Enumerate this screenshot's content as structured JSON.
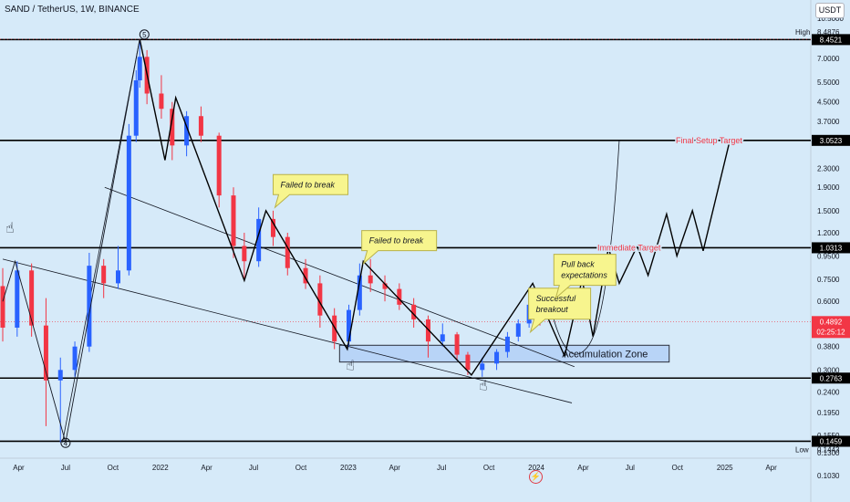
{
  "header": {
    "title": "SAND / TetherUS, 1W, BINANCE",
    "currency_button": "USDT"
  },
  "colors": {
    "background": "#d6eaf9",
    "up": "#2962ff",
    "down": "#f23645",
    "zone_fill": "#b8d4f7",
    "callout": "#f7f58e",
    "callout_border": "#b9b24a",
    "target_text": "#f23645"
  },
  "chart_data": {
    "type": "candlestick",
    "symbol": "SAND / TetherUS",
    "interval": "1W",
    "exchange": "BINANCE",
    "scale": "log",
    "ylim": [
      0.095,
      11.5
    ],
    "xlim": [
      "2021-03-01",
      "2025-06-01"
    ],
    "x_ticks": [
      {
        "label": "Apr",
        "date": "2021-04-01"
      },
      {
        "label": "Jul",
        "date": "2021-07-01"
      },
      {
        "label": "Oct",
        "date": "2021-10-01"
      },
      {
        "label": "2022",
        "date": "2022-01-01"
      },
      {
        "label": "Apr",
        "date": "2022-04-01"
      },
      {
        "label": "Jul",
        "date": "2022-07-01"
      },
      {
        "label": "Oct",
        "date": "2022-10-01"
      },
      {
        "label": "2023",
        "date": "2023-01-01"
      },
      {
        "label": "Apr",
        "date": "2023-04-01"
      },
      {
        "label": "Jul",
        "date": "2023-07-01"
      },
      {
        "label": "Oct",
        "date": "2023-10-01"
      },
      {
        "label": "2024",
        "date": "2024-01-01"
      },
      {
        "label": "Apr",
        "date": "2024-04-01"
      },
      {
        "label": "Jul",
        "date": "2024-07-01"
      },
      {
        "label": "Oct",
        "date": "2024-10-01"
      },
      {
        "label": "2025",
        "date": "2025-01-01"
      },
      {
        "label": "Apr",
        "date": "2025-04-01"
      }
    ],
    "y_ticks": [
      "10.5000",
      "7.0000",
      "5.5000",
      "4.5000",
      "3.7000",
      "2.3000",
      "1.9000",
      "1.5000",
      "1.2000",
      "0.9500",
      "0.7500",
      "0.6000",
      "0.3800",
      "0.3000",
      "0.2400",
      "0.1950",
      "0.1550",
      "0.1300",
      "0.1030"
    ],
    "price_labels": [
      {
        "text": "High",
        "value": "8.4876",
        "price": 8.4876,
        "kind": "high"
      },
      {
        "text": "",
        "value": "8.4521",
        "price": 8.4521,
        "kind": "box"
      },
      {
        "text": "",
        "value": "3.0523",
        "price": 3.0523,
        "kind": "box"
      },
      {
        "text": "",
        "value": "1.0313",
        "price": 1.0313,
        "kind": "box"
      },
      {
        "text": "",
        "value": "0.4892",
        "price": 0.4892,
        "kind": "current",
        "countdown": "02:25:12"
      },
      {
        "text": "",
        "value": "0.2763",
        "price": 0.2763,
        "kind": "box"
      },
      {
        "text": "",
        "value": "0.1459",
        "price": 0.1459,
        "kind": "box"
      },
      {
        "text": "Low",
        "value": "0.1443",
        "price": 0.1443,
        "kind": "low"
      }
    ],
    "candles": [
      {
        "d": "2021-03-01",
        "o": 0.7,
        "h": 0.84,
        "l": 0.4,
        "c": 0.46
      },
      {
        "d": "2021-03-29",
        "o": 0.46,
        "h": 0.9,
        "l": 0.42,
        "c": 0.82
      },
      {
        "d": "2021-04-26",
        "o": 0.82,
        "h": 0.88,
        "l": 0.42,
        "c": 0.47
      },
      {
        "d": "2021-05-24",
        "o": 0.47,
        "h": 0.62,
        "l": 0.17,
        "c": 0.27
      },
      {
        "d": "2021-06-21",
        "o": 0.27,
        "h": 0.34,
        "l": 0.1443,
        "c": 0.3
      },
      {
        "d": "2021-07-19",
        "o": 0.3,
        "h": 0.4,
        "l": 0.28,
        "c": 0.38
      },
      {
        "d": "2021-08-16",
        "o": 0.38,
        "h": 0.98,
        "l": 0.36,
        "c": 0.86
      },
      {
        "d": "2021-09-13",
        "o": 0.86,
        "h": 0.92,
        "l": 0.62,
        "c": 0.72
      },
      {
        "d": "2021-10-11",
        "o": 0.72,
        "h": 1.05,
        "l": 0.68,
        "c": 0.82
      },
      {
        "d": "2021-11-01",
        "o": 0.82,
        "h": 3.6,
        "l": 0.78,
        "c": 3.2
      },
      {
        "d": "2021-11-15",
        "o": 3.2,
        "h": 6.2,
        "l": 3.0,
        "c": 5.6
      },
      {
        "d": "2021-11-22",
        "o": 5.6,
        "h": 8.4876,
        "l": 5.2,
        "c": 7.1
      },
      {
        "d": "2021-12-06",
        "o": 7.1,
        "h": 7.6,
        "l": 4.4,
        "c": 4.9
      },
      {
        "d": "2022-01-03",
        "o": 4.9,
        "h": 5.9,
        "l": 3.8,
        "c": 4.2
      },
      {
        "d": "2022-01-24",
        "o": 4.2,
        "h": 4.5,
        "l": 2.5,
        "c": 2.9
      },
      {
        "d": "2022-02-21",
        "o": 2.9,
        "h": 4.1,
        "l": 2.6,
        "c": 3.9
      },
      {
        "d": "2022-03-21",
        "o": 3.9,
        "h": 4.3,
        "l": 3.0,
        "c": 3.2
      },
      {
        "d": "2022-04-25",
        "o": 3.2,
        "h": 3.3,
        "l": 1.55,
        "c": 1.75
      },
      {
        "d": "2022-05-23",
        "o": 1.75,
        "h": 1.9,
        "l": 0.93,
        "c": 1.05
      },
      {
        "d": "2022-06-13",
        "o": 1.05,
        "h": 1.2,
        "l": 0.74,
        "c": 0.9
      },
      {
        "d": "2022-07-11",
        "o": 0.9,
        "h": 1.55,
        "l": 0.85,
        "c": 1.38
      },
      {
        "d": "2022-08-08",
        "o": 1.38,
        "h": 1.5,
        "l": 1.05,
        "c": 1.15
      },
      {
        "d": "2022-09-05",
        "o": 1.15,
        "h": 1.2,
        "l": 0.78,
        "c": 0.84
      },
      {
        "d": "2022-10-10",
        "o": 0.84,
        "h": 0.92,
        "l": 0.68,
        "c": 0.72
      },
      {
        "d": "2022-11-07",
        "o": 0.72,
        "h": 0.78,
        "l": 0.46,
        "c": 0.52
      },
      {
        "d": "2022-12-05",
        "o": 0.52,
        "h": 0.56,
        "l": 0.37,
        "c": 0.4
      },
      {
        "d": "2023-01-02",
        "o": 0.4,
        "h": 0.58,
        "l": 0.38,
        "c": 0.55
      },
      {
        "d": "2023-01-23",
        "o": 0.55,
        "h": 0.88,
        "l": 0.52,
        "c": 0.78
      },
      {
        "d": "2023-02-13",
        "o": 0.78,
        "h": 0.92,
        "l": 0.66,
        "c": 0.72
      },
      {
        "d": "2023-03-13",
        "o": 0.72,
        "h": 0.78,
        "l": 0.6,
        "c": 0.68
      },
      {
        "d": "2023-04-10",
        "o": 0.68,
        "h": 0.72,
        "l": 0.55,
        "c": 0.58
      },
      {
        "d": "2023-05-08",
        "o": 0.58,
        "h": 0.62,
        "l": 0.46,
        "c": 0.5
      },
      {
        "d": "2023-06-05",
        "o": 0.5,
        "h": 0.52,
        "l": 0.34,
        "c": 0.4
      },
      {
        "d": "2023-07-03",
        "o": 0.4,
        "h": 0.48,
        "l": 0.38,
        "c": 0.43
      },
      {
        "d": "2023-07-31",
        "o": 0.43,
        "h": 0.44,
        "l": 0.33,
        "c": 0.35
      },
      {
        "d": "2023-08-21",
        "o": 0.35,
        "h": 0.36,
        "l": 0.285,
        "c": 0.3
      },
      {
        "d": "2023-09-18",
        "o": 0.3,
        "h": 0.34,
        "l": 0.28,
        "c": 0.32
      },
      {
        "d": "2023-10-16",
        "o": 0.32,
        "h": 0.37,
        "l": 0.3,
        "c": 0.36
      },
      {
        "d": "2023-11-06",
        "o": 0.36,
        "h": 0.44,
        "l": 0.34,
        "c": 0.42
      },
      {
        "d": "2023-11-27",
        "o": 0.42,
        "h": 0.5,
        "l": 0.4,
        "c": 0.48
      },
      {
        "d": "2023-12-18",
        "o": 0.48,
        "h": 0.65,
        "l": 0.46,
        "c": 0.58
      },
      {
        "d": "2024-01-08",
        "o": 0.58,
        "h": 0.62,
        "l": 0.47,
        "c": 0.4892
      }
    ],
    "annotations": [
      {
        "kind": "callout",
        "text": [
          "Failed to break"
        ],
        "date": "2022-08-01",
        "price": 1.55
      },
      {
        "kind": "callout",
        "text": [
          "Failed to break"
        ],
        "date": "2023-01-20",
        "price": 0.88
      },
      {
        "kind": "callout",
        "text": [
          "Successful",
          "breakout"
        ],
        "date": "2023-12-10",
        "price": 0.44
      },
      {
        "kind": "callout",
        "text": [
          "Pull back",
          "expectations"
        ],
        "date": "2024-01-28",
        "price": 0.62
      },
      {
        "kind": "zone",
        "text": "Accumulation Zone",
        "price_top": 0.385,
        "price_bottom": 0.325,
        "d0": "2022-12-15",
        "d1": "2024-09-15"
      },
      {
        "kind": "target",
        "text": "Final Setup Target",
        "price": 3.0523,
        "d0": "2024-06-10"
      },
      {
        "kind": "target",
        "text": "Immediate Target",
        "price": 1.0313,
        "d0": "2024-04-25"
      },
      {
        "kind": "wave",
        "text": "5",
        "date": "2021-12-01",
        "price": 8.9
      },
      {
        "kind": "wave",
        "text": "4",
        "date": "2021-07-01",
        "price": 0.1435
      }
    ],
    "horizontal_lines": [
      8.4521,
      3.0523,
      1.0313,
      0.2763,
      0.1459
    ]
  }
}
